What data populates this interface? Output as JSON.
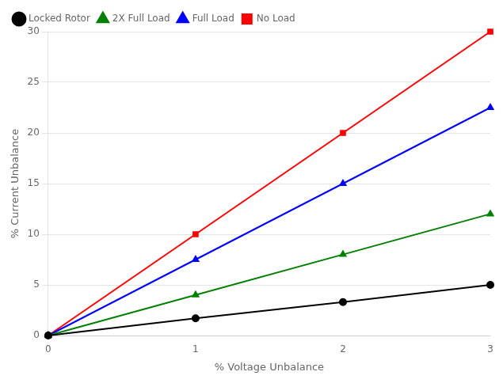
{
  "chart_data": {
    "type": "line",
    "xlabel": "% Voltage Unbalance",
    "ylabel": "% Current Unbalance",
    "x": [
      0,
      1,
      2,
      3
    ],
    "series": [
      {
        "name": "Locked Rotor",
        "color": "#000000",
        "marker": "circle",
        "values": [
          0,
          1.7,
          3.3,
          5.0
        ]
      },
      {
        "name": "2X Full Load",
        "color": "#008000",
        "marker": "triangle",
        "values": [
          0,
          4.0,
          8.0,
          12.0
        ]
      },
      {
        "name": "Full Load",
        "color": "#0000FF",
        "marker": "triangle",
        "values": [
          0,
          7.5,
          15.0,
          22.5
        ]
      },
      {
        "name": "No Load",
        "color": "#FF0000",
        "marker": "square",
        "values": [
          0,
          10.0,
          20.0,
          30.0
        ]
      }
    ],
    "xlim": [
      0,
      3
    ],
    "ylim": [
      0,
      30
    ],
    "xticks": [
      0,
      1,
      2,
      3
    ],
    "yticks": [
      0,
      5,
      10,
      15,
      20,
      25,
      30
    ],
    "grid": "y",
    "legend": "upper left"
  }
}
